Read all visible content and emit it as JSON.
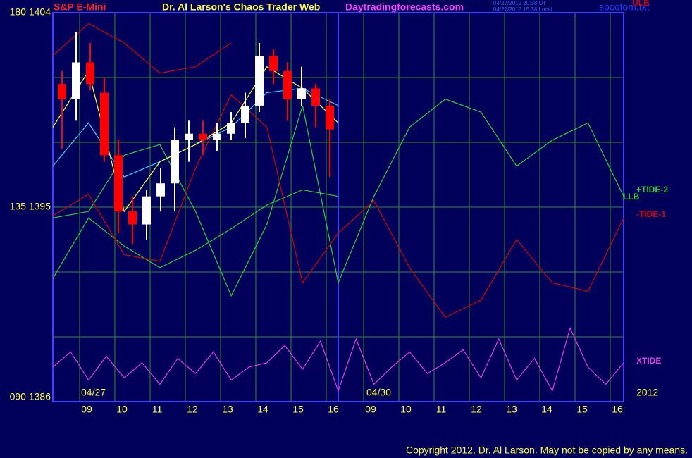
{
  "chart_data": {
    "type": "candlestick",
    "instrument": "S&P E-Mini",
    "title": "Dr. Al Larson's Chaos Trader Web",
    "site": "Daytradingforecasts.com",
    "timestamps": [
      "04/27/2012 20:38 UT",
      "04/27/2012 15:38 Local"
    ],
    "file": "spcotom.txt",
    "copyright": "Copyright 2012, Dr. Al Larson. May not be copied by any means.",
    "date_labels": [
      "04/27",
      "04/30",
      "2012"
    ],
    "xtick_labels": [
      "09",
      "10",
      "11",
      "12",
      "13",
      "14",
      "15",
      "16",
      "09",
      "10",
      "11",
      "12",
      "13",
      "14",
      "15",
      "16"
    ],
    "ylim": [
      1386,
      1404
    ],
    "yticks": [
      {
        "value": 1404,
        "label": "180 1404"
      },
      {
        "value": 1395,
        "label": "135 1395"
      },
      {
        "value": 1386,
        "label": "090 1386"
      }
    ],
    "ygrid": [
      1389,
      1392,
      1398,
      1401
    ],
    "grid": true,
    "up_color": "#ffffff",
    "down_color": "#ff0000",
    "candles": {
      "open": [
        1400.7,
        1400.0,
        1401.7,
        1400.3,
        1397.4,
        1394.8,
        1394.2,
        1395.5,
        1396.1,
        1398.1,
        1398.4,
        1398.1,
        1398.4,
        1398.9,
        1399.7,
        1402.0,
        1401.3,
        1400.0,
        1400.5,
        1399.7
      ],
      "high": [
        1401.3,
        1403.1,
        1402.6,
        1401.0,
        1398.1,
        1395.5,
        1395.8,
        1396.8,
        1398.7,
        1399.0,
        1399.0,
        1398.9,
        1399.4,
        1400.3,
        1402.6,
        1402.3,
        1401.7,
        1401.5,
        1400.7,
        1400.0
      ],
      "low": [
        1397.7,
        1399.0,
        1400.4,
        1397.1,
        1393.8,
        1393.3,
        1393.5,
        1394.8,
        1394.8,
        1397.1,
        1397.4,
        1397.6,
        1398.1,
        1398.2,
        1399.4,
        1400.7,
        1399.0,
        1399.7,
        1398.7,
        1396.4
      ],
      "close": [
        1400.0,
        1401.7,
        1400.7,
        1397.4,
        1394.8,
        1394.2,
        1395.5,
        1396.1,
        1398.1,
        1398.4,
        1398.1,
        1398.4,
        1398.9,
        1399.7,
        1402.0,
        1401.3,
        1400.0,
        1400.5,
        1399.7,
        1398.6
      ]
    },
    "series": [
      {
        "name": "ULB",
        "color": "#d00000",
        "values": [
          1402.0,
          1403.5,
          1402.6,
          1401.2,
          1401.5,
          1402.6,
          null,
          null,
          null,
          null,
          null,
          null,
          null,
          null,
          null,
          null,
          null
        ]
      },
      {
        "name": "+TIDE-2",
        "color": "#30d030",
        "values": [
          1394.5,
          1394.8,
          1397.4,
          1397.9,
          1394.8,
          1390.9,
          1394.2,
          1399.7,
          1391.5,
          1395.5,
          1398.7,
          1400.0,
          1399.4,
          1396.9,
          1398.1,
          1398.9,
          1395.5
        ]
      },
      {
        "name": "LLB",
        "color": "#30d030",
        "values": [
          1391.7,
          1394.5,
          1393.2,
          1392.2,
          1393.0,
          1394.0,
          1395.1,
          1395.8,
          1395.5,
          null,
          null,
          null,
          null,
          null,
          null,
          null,
          null
        ]
      },
      {
        "name": "-TIDE-1",
        "color": "#d00000",
        "values": [
          1394.6,
          1395.6,
          1392.8,
          1392.5,
          1396.8,
          1400.2,
          1398.7,
          1391.5,
          1393.8,
          1395.3,
          1392.2,
          1389.9,
          1390.7,
          1393.5,
          1391.5,
          1391.1,
          1394.5
        ]
      },
      {
        "color": "#40d0ff",
        "values": [
          1396.9,
          1398.9,
          1396.4,
          1397.1,
          1397.9,
          1398.7,
          1400.3,
          1400.5,
          1399.7,
          null,
          null,
          null,
          null,
          null,
          null,
          null,
          null
        ]
      },
      {
        "color": "#ffff40",
        "values": [
          1398.7,
          1401.3,
          1394.8,
          1397.1,
          1397.9,
          1398.9,
          1401.5,
          1400.5,
          1398.9,
          null,
          null,
          null,
          null,
          null,
          null,
          null,
          null
        ]
      }
    ],
    "xtide": {
      "name": "XTIDE",
      "color": "#e040e0",
      "values": [
        1387.6,
        1388.3,
        1387.0,
        1388.1,
        1387.1,
        1387.8,
        1386.8,
        1388.0,
        1387.3,
        1388.3,
        1387.0,
        1387.6,
        1387.8,
        1388.6,
        1387.5,
        1388.8,
        1386.5,
        1388.9,
        1386.8,
        1387.6,
        1388.3,
        1387.3,
        1387.8,
        1388.4,
        1387.1,
        1388.9,
        1387.0,
        1388.0,
        1386.5,
        1389.4,
        1387.6,
        1386.8,
        1387.8
      ]
    }
  }
}
